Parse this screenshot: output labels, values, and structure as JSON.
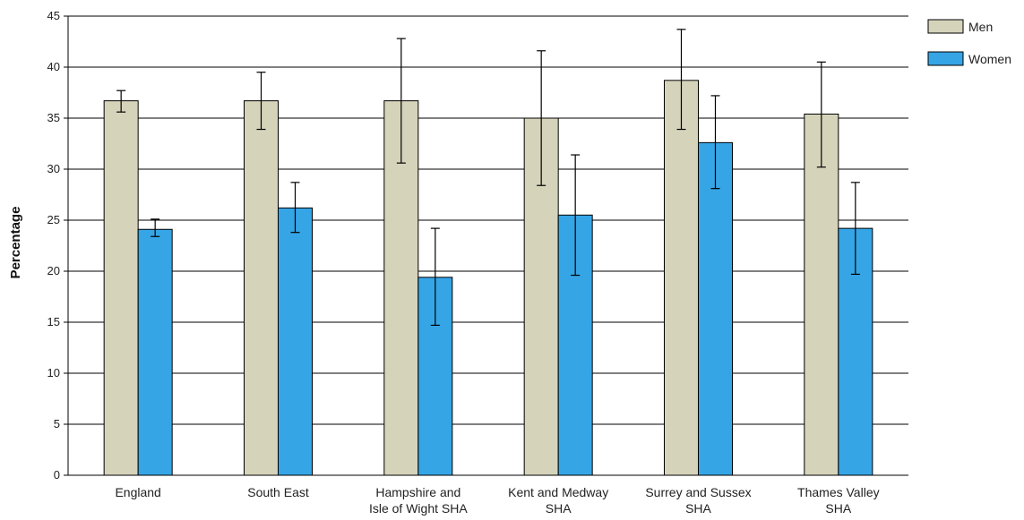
{
  "chart_data": {
    "type": "bar",
    "title": "",
    "xlabel": "",
    "ylabel": "Percentage",
    "ylim": [
      0,
      45
    ],
    "yticks": [
      0,
      5,
      10,
      15,
      20,
      25,
      30,
      35,
      40,
      45
    ],
    "grid": true,
    "legend_position": "top-right",
    "categories": [
      [
        "England"
      ],
      [
        "South East"
      ],
      [
        "Hampshire and",
        "Isle of Wight SHA"
      ],
      [
        "Kent and Medway",
        "SHA"
      ],
      [
        "Surrey and Sussex",
        "SHA"
      ],
      [
        "Thames Valley",
        "SHA"
      ]
    ],
    "series": [
      {
        "name": "Men",
        "color": "#d5d4bb",
        "values": [
          36.7,
          36.7,
          36.7,
          35.0,
          38.7,
          35.4
        ],
        "error_low": [
          35.6,
          33.9,
          30.6,
          28.4,
          33.9,
          30.2
        ],
        "error_high": [
          37.7,
          39.5,
          42.8,
          41.6,
          43.7,
          40.5
        ]
      },
      {
        "name": "Women",
        "color": "#35a5e6",
        "values": [
          24.1,
          26.2,
          19.4,
          25.5,
          32.6,
          24.2
        ],
        "error_low": [
          23.4,
          23.8,
          14.7,
          19.6,
          28.1,
          19.7
        ],
        "error_high": [
          25.1,
          28.7,
          24.2,
          31.4,
          37.2,
          28.7
        ]
      }
    ]
  }
}
